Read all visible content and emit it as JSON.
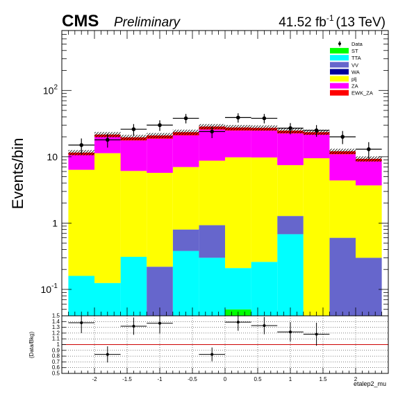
{
  "header": {
    "experiment": "CMS",
    "status": "Preliminary",
    "lumi_value": "41.52 fb",
    "lumi_exp": "-1",
    "lumi_energy": "(13 TeV)"
  },
  "chart_data": [
    {
      "type": "bar",
      "stacked": true,
      "log_y": true,
      "ylabel": "Events/bin",
      "xlabel": "",
      "xlim": [
        -2.5,
        2.5
      ],
      "ylim": [
        0.04,
        800
      ],
      "bin_edges": [
        -2.4,
        -2.0,
        -1.6,
        -1.2,
        -0.8,
        -0.4,
        0.0,
        0.4,
        0.8,
        1.2,
        1.6,
        2.0,
        2.4
      ],
      "x_ticks": [
        -2,
        -1.5,
        -1,
        -0.5,
        0,
        0.5,
        1,
        1.5,
        2
      ],
      "x_tick_labels": [
        "-2",
        "-1.5",
        "-1",
        "-0.5",
        "0",
        "0.5",
        "1",
        "1.5",
        "2"
      ],
      "y_ticks": [
        0.1,
        1,
        10,
        100
      ],
      "y_tick_labels": [
        {
          "base": "10",
          "exp": "-1"
        },
        {
          "base": "1",
          "exp": ""
        },
        {
          "base": "10",
          "exp": ""
        },
        {
          "base": "10",
          "exp": "2"
        }
      ],
      "series": [
        {
          "name": "ST",
          "color": "#00ff00",
          "values": [
            0,
            0,
            0,
            0,
            0,
            0,
            0.05,
            0,
            0,
            0,
            0,
            0
          ]
        },
        {
          "name": "TTA",
          "color": "#00ffff",
          "values": [
            0.16,
            0.125,
            0.31,
            0,
            0.38,
            0.3,
            0.16,
            0.26,
            0.68,
            0,
            0,
            0
          ]
        },
        {
          "name": "VV",
          "color": "#6666cc",
          "values": [
            0,
            0,
            0,
            0.22,
            0.42,
            0.63,
            0,
            0,
            0.6,
            0,
            0.6,
            0.3
          ]
        },
        {
          "name": "WA",
          "color": "#000099",
          "values": [
            0,
            0,
            0,
            0,
            0,
            0,
            0,
            0,
            0,
            0,
            0,
            0
          ]
        },
        {
          "name": "plj",
          "color": "#ffff00",
          "values": [
            6.2,
            11.2,
            5.8,
            5.5,
            6.2,
            7.8,
            9.6,
            9.5,
            6.2,
            9.5,
            3.8,
            3.4
          ]
        },
        {
          "name": "ZA",
          "color": "#ff00ff",
          "values": [
            4.2,
            8.5,
            11.5,
            13.0,
            14.0,
            17.0,
            15.0,
            15.0,
            15.0,
            12.0,
            6.5,
            4.8
          ]
        },
        {
          "name": "EWK_ZA",
          "color": "#ff0000",
          "values": [
            1.0,
            1.8,
            2.0,
            2.2,
            2.5,
            2.8,
            2.8,
            2.5,
            2.3,
            2.0,
            1.2,
            0.8
          ]
        }
      ],
      "data": {
        "name": "Data",
        "x": [
          -2.2,
          -1.8,
          -1.4,
          -1.0,
          -0.6,
          -0.2,
          0.2,
          0.6,
          1.0,
          1.4,
          1.8,
          2.2
        ],
        "y": [
          15,
          18,
          26,
          30,
          38,
          24,
          39,
          38,
          27,
          25,
          20,
          13
        ]
      },
      "legend_position": "top-right"
    },
    {
      "type": "scatter",
      "ylabel": "(Data/Bkg)",
      "xlabel": "etalep2_mu",
      "xlim": [
        -2.5,
        2.5
      ],
      "ylim": [
        0.5,
        1.5
      ],
      "reference_line": 1.0,
      "grid": true,
      "x_ticks": [
        -2,
        -1.5,
        -1,
        -0.5,
        0,
        0.5,
        1,
        1.5,
        2
      ],
      "x_tick_labels": [
        "-2",
        "-1.5",
        "-1",
        "-0.5",
        "0",
        "0.5",
        "1",
        "1.5",
        "2"
      ],
      "y_ticks": [
        0.5,
        0.6,
        0.7,
        0.8,
        0.9,
        1,
        1.1,
        1.2,
        1.3,
        1.4,
        1.5
      ],
      "y_tick_labels": [
        "0.5",
        "0.6",
        "0.7",
        "0.8",
        "0.9",
        "1",
        "1.1",
        "1.2",
        "1.3",
        "1.4",
        "1.5"
      ],
      "points": {
        "x": [
          -2.2,
          -1.8,
          -1.4,
          -1.0,
          -0.2,
          0.2,
          0.6,
          1.0,
          1.4
        ],
        "y": [
          1.38,
          0.83,
          1.32,
          1.37,
          0.83,
          1.39,
          1.33,
          1.22,
          1.18
        ],
        "err": [
          0.18,
          0.14,
          0.15,
          0.18,
          0.12,
          0.15,
          0.15,
          0.17,
          0.2
        ]
      }
    }
  ]
}
